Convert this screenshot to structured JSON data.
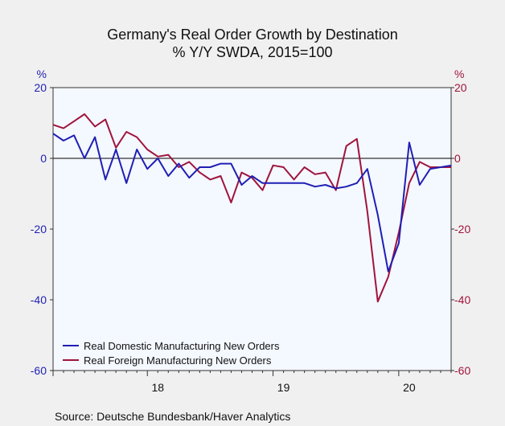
{
  "chart_data": {
    "type": "line",
    "title": "Germany's Real Order Growth by Destination",
    "subtitle": "% Y/Y   SWDA, 2015=100",
    "left_axis": {
      "unit": "%",
      "ylim": [
        -60,
        20
      ],
      "ticks": [
        20,
        0,
        -20,
        -40,
        -60
      ],
      "color": "#1f1fb4"
    },
    "right_axis": {
      "unit": "%",
      "ylim": [
        -60,
        20
      ],
      "ticks": [
        20,
        0,
        -20,
        -40,
        -60
      ],
      "color": "#a0143c"
    },
    "x_ticks": [
      "18",
      "19",
      "20"
    ],
    "x_range": [
      0,
      38
    ],
    "x_tick_positions": [
      10,
      22,
      34
    ],
    "grid": false,
    "legend_position": "bottom-left",
    "series": [
      {
        "name": "Real Domestic Manufacturing New Orders",
        "color": "#1f1fb4",
        "values": [
          7,
          5,
          6.5,
          0,
          6,
          -6,
          2.5,
          -7,
          2.5,
          -3,
          0,
          -5,
          -1.5,
          -5.5,
          -2.5,
          -2.5,
          -1.5,
          -1.5,
          -7.5,
          -5,
          -7,
          -7,
          -7,
          -7,
          -7,
          -8,
          -7.5,
          -8.5,
          -8,
          -7,
          -3,
          -16,
          -32,
          -24,
          4.5,
          -7.5,
          -3,
          -2.5,
          -2
        ]
      },
      {
        "name": "Real Foreign Manufacturing New Orders",
        "color": "#a0143c",
        "values": [
          9.5,
          8.5,
          10.5,
          12.5,
          9,
          11,
          3,
          7.5,
          6,
          2.5,
          0.5,
          1,
          -2.5,
          -1,
          -4,
          -6,
          -5,
          -12.5,
          -4,
          -5.5,
          -9,
          -2,
          -2.5,
          -6,
          -2.5,
          -4.5,
          -4,
          -9,
          3.5,
          5.5,
          -15,
          -40.5,
          -33.5,
          -21,
          -7,
          -1,
          -2.5,
          -2.5,
          -2.5
        ]
      }
    ],
    "source": "Source:   Deutsche Bundesbank/Haver Analytics"
  }
}
